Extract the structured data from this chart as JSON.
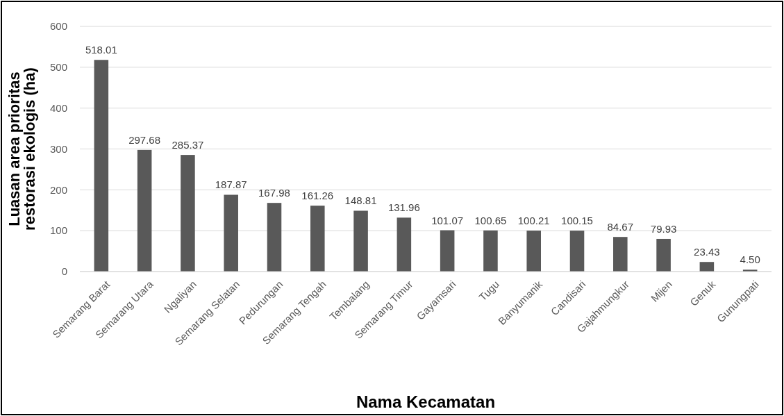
{
  "chart_data": {
    "type": "bar",
    "xlabel": "Nama Kecamatan",
    "ylabel": "Luasan area prioritas restorasi ekologis (ha)",
    "categories": [
      "Semarang Barat",
      "Semarang Utara",
      "Ngaliyan",
      "Semarang Selatan",
      "Pedurungan",
      "Semarang Tengah",
      "Tembalang",
      "Semarang Timur",
      "Gayamsari",
      "Tugu",
      "Banyumanik",
      "Candisari",
      "Gajahmungkur",
      "Mijen",
      "Genuk",
      "Gunungpati"
    ],
    "values": [
      518.01,
      297.68,
      285.37,
      187.87,
      167.98,
      161.26,
      148.81,
      131.96,
      101.07,
      100.65,
      100.21,
      100.15,
      84.67,
      79.93,
      23.43,
      4.5
    ],
    "value_labels": [
      "518.01",
      "297.68",
      "285.37",
      "187.87",
      "167.98",
      "161.26",
      "148.81",
      "131.96",
      "101.07",
      "100.65",
      "100.21",
      "100.15",
      "84.67",
      "79.93",
      "23.43",
      "4.50"
    ],
    "color": "#595959",
    "ylim": [
      0,
      600
    ],
    "yticks": [
      0,
      100,
      200,
      300,
      400,
      500,
      600
    ],
    "grid": "y"
  }
}
